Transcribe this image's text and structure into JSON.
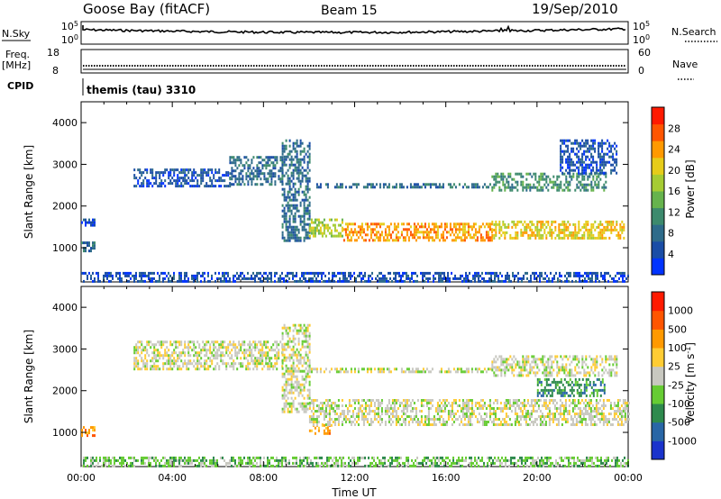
{
  "header": {
    "station": "Goose Bay (fitACF)",
    "beam": "Beam 15",
    "date": "19/Sep/2010"
  },
  "nsky_panel": {
    "left_label": "N.Sky",
    "left_ticks": [
      "10^5",
      "10^0"
    ],
    "right_ticks": [
      "10^5",
      "10^0"
    ],
    "right_label": "N.Search"
  },
  "freq_panel": {
    "left_label_line1": "Freq.",
    "left_label_line2": "[MHz]",
    "left_ticks": [
      "18",
      "8"
    ],
    "right_ticks": [
      "60",
      "0"
    ],
    "right_label": "Nave"
  },
  "cpid_panel": {
    "label": "CPID",
    "program": "themis (tau) 3310"
  },
  "chart_data": [
    {
      "type": "heatmap",
      "name": "power",
      "ylabel": "Slant Range [km]",
      "yticks": [
        "4000",
        "3000",
        "2000",
        "1000"
      ],
      "ylim": [
        180,
        4500
      ],
      "xlim": [
        0,
        24
      ],
      "colorbar": {
        "label": "Power [dB]",
        "ticks": [
          "28",
          "24",
          "20",
          "16",
          "12",
          "8",
          "4"
        ],
        "colors": [
          "#0033ff",
          "#1a4da6",
          "#2e6b8a",
          "#3d8a6d",
          "#66b34d",
          "#a6cc33",
          "#e6cc1a",
          "#ff9900",
          "#ff5500",
          "#ff1a00"
        ]
      },
      "echo_bands": [
        {
          "t": [
            0.0,
            0.6
          ],
          "range": [
            950,
            1150
          ],
          "level": 2
        },
        {
          "t": [
            0.0,
            0.6
          ],
          "range": [
            1550,
            1700
          ],
          "level": 1
        },
        {
          "t": [
            2.3,
            6.5
          ],
          "range": [
            2450,
            2900
          ],
          "level": 1
        },
        {
          "t": [
            6.5,
            8.8
          ],
          "range": [
            2500,
            3200
          ],
          "level": 2
        },
        {
          "t": [
            8.8,
            10.0
          ],
          "range": [
            1200,
            3600
          ],
          "level": 2
        },
        {
          "t": [
            10.0,
            11.5
          ],
          "range": [
            1250,
            1700
          ],
          "level": 5
        },
        {
          "t": [
            11.5,
            18.0
          ],
          "range": [
            1200,
            1600
          ],
          "level": 7
        },
        {
          "t": [
            18.0,
            23.8
          ],
          "range": [
            1250,
            1650
          ],
          "level": 6
        },
        {
          "t": [
            10.0,
            18.0
          ],
          "range": [
            2450,
            2550
          ],
          "level": 2
        },
        {
          "t": [
            18.0,
            23.0
          ],
          "range": [
            2350,
            2800
          ],
          "level": 3
        },
        {
          "t": [
            21.0,
            23.5
          ],
          "range": [
            2800,
            3600
          ],
          "level": 1
        },
        {
          "t": [
            0.0,
            24.0
          ],
          "range": [
            200,
            420
          ],
          "level": 1
        }
      ]
    },
    {
      "type": "heatmap",
      "name": "velocity",
      "ylabel": "Slant Range [km]",
      "yticks": [
        "4000",
        "3000",
        "2000",
        "1000"
      ],
      "ylim": [
        180,
        4500
      ],
      "xlim": [
        0,
        24
      ],
      "xticks": [
        "00:00",
        "04:00",
        "08:00",
        "12:00",
        "16:00",
        "20:00",
        "00:00"
      ],
      "xlabel": "Time UT",
      "colorbar": {
        "label": "Velocity [m s^-1]",
        "ticks": [
          "1000",
          "500",
          "100",
          "25",
          "-25",
          "-100",
          "-500",
          "-1000"
        ],
        "colors": [
          "#1a33cc",
          "#2966a6",
          "#2e8a4d",
          "#66cc33",
          "#c8c8c0",
          "#ffcc33",
          "#ff9900",
          "#ff5500",
          "#ff1a00"
        ]
      },
      "echo_bands": [
        {
          "t": [
            0.0,
            0.6
          ],
          "range": [
            950,
            1150
          ],
          "level": 6
        },
        {
          "t": [
            2.3,
            8.8
          ],
          "range": [
            2500,
            3200
          ],
          "level": 4
        },
        {
          "t": [
            8.8,
            10.0
          ],
          "range": [
            1500,
            3600
          ],
          "level": 4
        },
        {
          "t": [
            10.0,
            11.0
          ],
          "range": [
            1000,
            1200
          ],
          "level": 6
        },
        {
          "t": [
            10.0,
            24.0
          ],
          "range": [
            1200,
            1800
          ],
          "level": 4
        },
        {
          "t": [
            10.0,
            18.0
          ],
          "range": [
            2450,
            2550
          ],
          "level": 4
        },
        {
          "t": [
            18.0,
            23.5
          ],
          "range": [
            2350,
            2850
          ],
          "level": 4
        },
        {
          "t": [
            20.0,
            23.0
          ],
          "range": [
            1900,
            2300
          ],
          "level": 2
        },
        {
          "t": [
            0.0,
            24.0
          ],
          "range": [
            200,
            420
          ],
          "level": 3
        }
      ]
    }
  ]
}
